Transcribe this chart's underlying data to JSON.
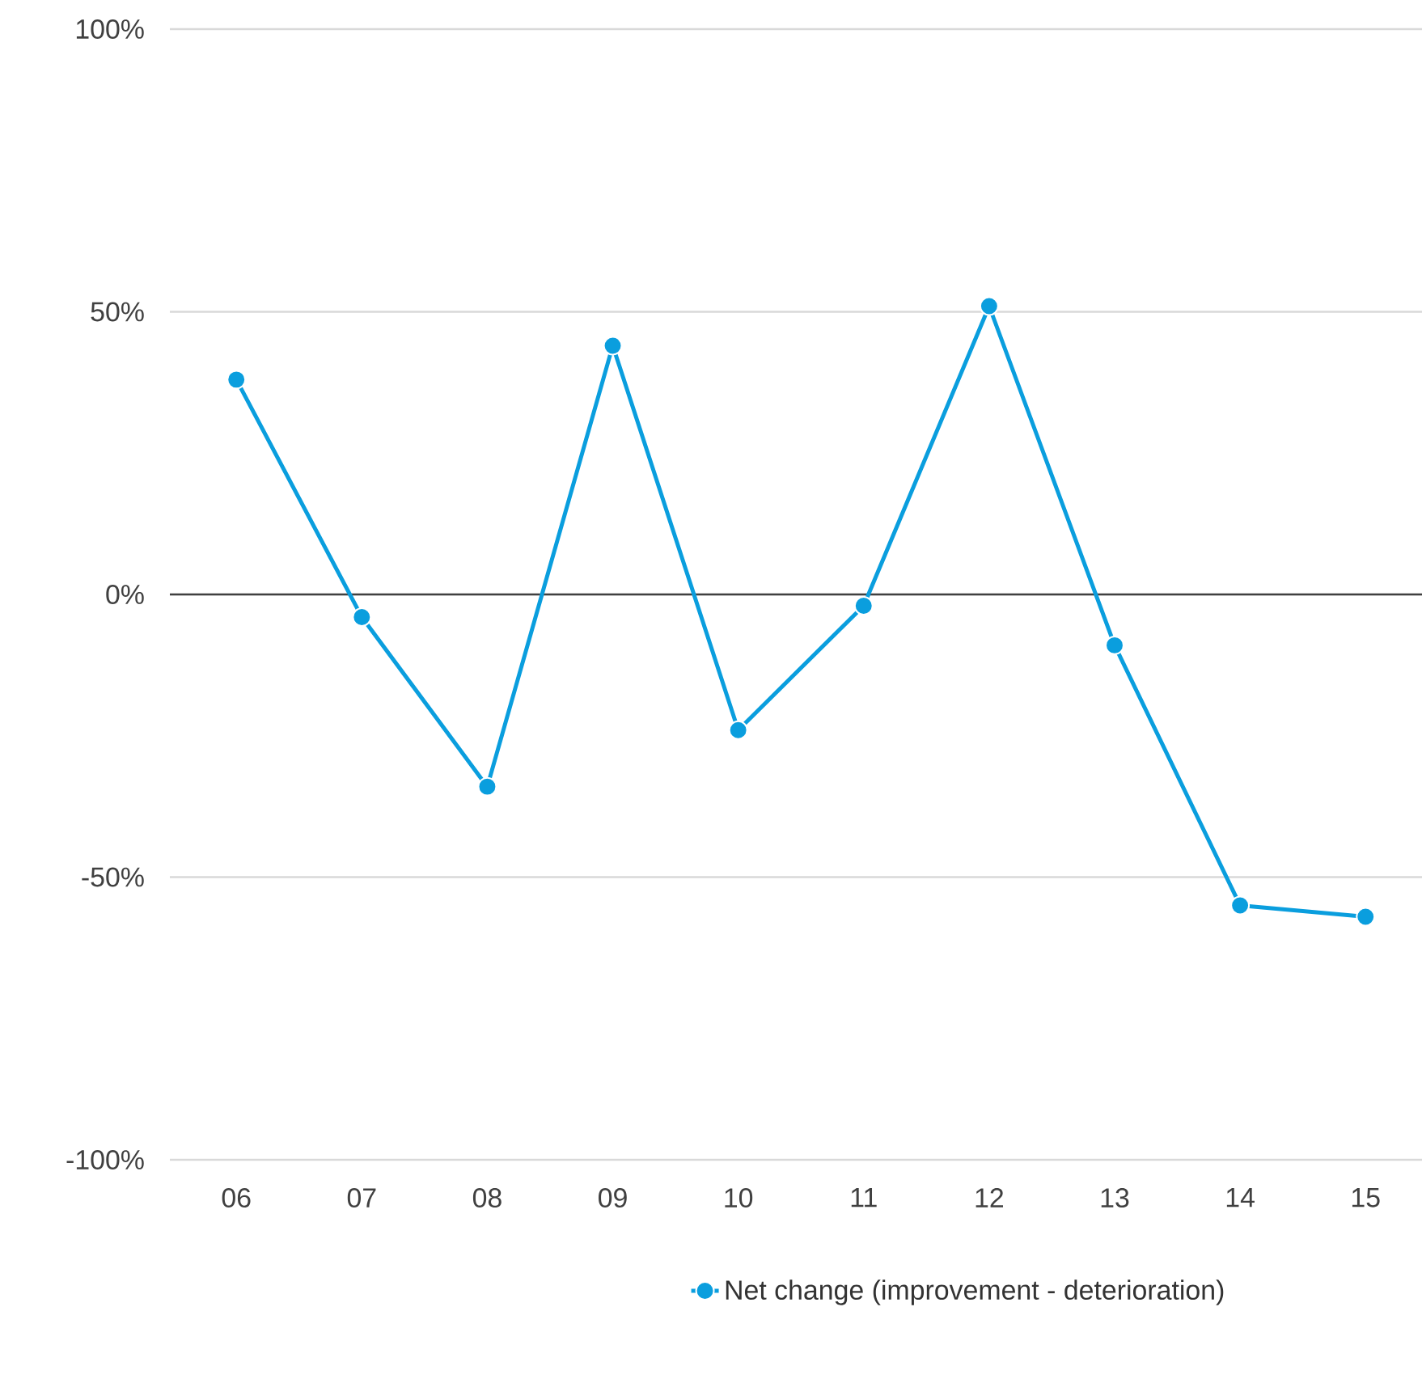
{
  "chart_data": {
    "type": "line",
    "categories": [
      "06",
      "07",
      "08",
      "09",
      "10",
      "11",
      "12",
      "13",
      "14",
      "15"
    ],
    "series": [
      {
        "name": "Net change (improvement - deterioration)",
        "color": "#0a9ede",
        "values": [
          38,
          -4,
          -34,
          44,
          -24,
          -2,
          51,
          -9,
          -55,
          -57
        ]
      }
    ],
    "ylim": [
      -100,
      100
    ],
    "yticks": [
      {
        "value": -100,
        "label": "-100%"
      },
      {
        "value": -50,
        "label": "-50%"
      },
      {
        "value": 0,
        "label": "0%"
      },
      {
        "value": 50,
        "label": "50%"
      },
      {
        "value": 100,
        "label": "100%"
      }
    ],
    "grid": "y",
    "legend": "bottom",
    "marker": "circle",
    "line_style": "solid",
    "ref_lines": [
      {
        "axis": "y",
        "value": 0,
        "color": "#404040"
      }
    ]
  }
}
